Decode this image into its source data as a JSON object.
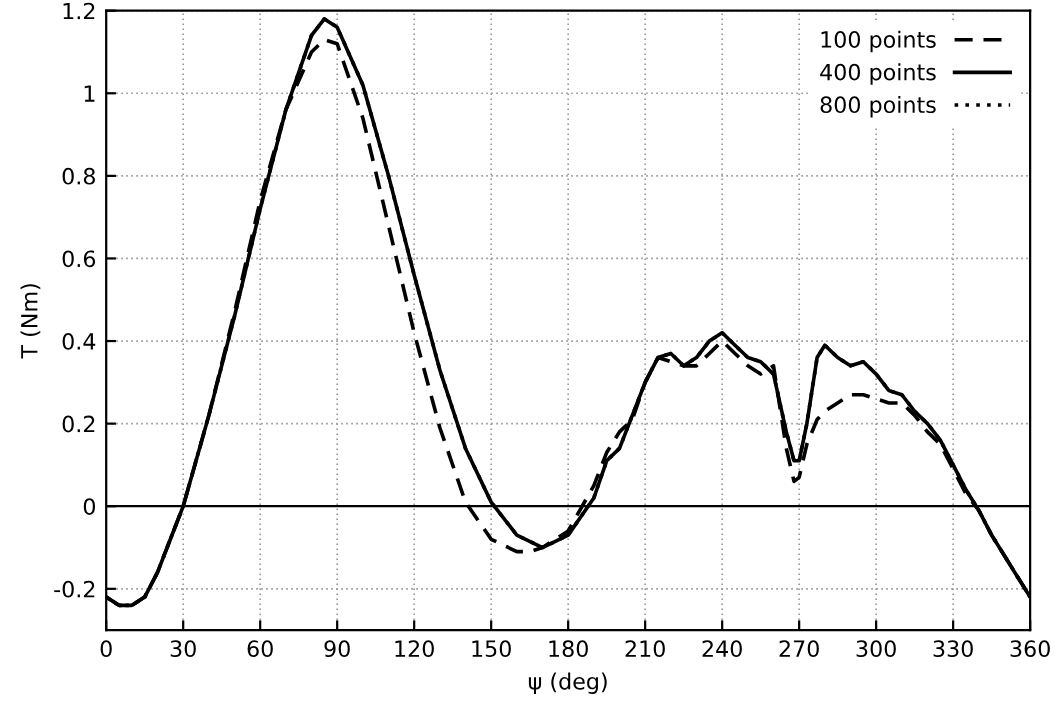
{
  "chart_data": {
    "type": "line",
    "xlabel": "ψ (deg)",
    "ylabel": "T (Nm)",
    "xlim": [
      0,
      360
    ],
    "ylim": [
      -0.3,
      1.2
    ],
    "xticks": [
      {
        "value": 0,
        "label": "0"
      },
      30,
      60,
      90,
      120,
      150,
      180,
      210,
      240,
      270,
      300,
      330,
      360
    ],
    "yticks": [
      -0.2,
      {
        "value": 0,
        "label": "0"
      },
      0.2,
      0.4,
      0.6,
      0.8,
      {
        "value": 1,
        "label": "1"
      },
      1.2
    ],
    "grid": true,
    "legend": "top right",
    "ref_lines": [
      {
        "axis": "y",
        "value": 0,
        "color": "#000000",
        "line_style": "solid"
      }
    ],
    "series": [
      {
        "name": "100 points",
        "color": "#000000",
        "line_style": "dashed",
        "x": [
          0,
          5,
          10,
          15,
          20,
          25,
          30,
          40,
          50,
          60,
          70,
          80,
          85,
          90,
          100,
          110,
          120,
          130,
          140,
          150,
          160,
          165,
          170,
          180,
          190,
          195,
          200,
          205,
          210,
          215,
          220,
          225,
          230,
          235,
          240,
          245,
          250,
          255,
          260,
          265,
          268,
          270,
          273,
          277,
          280,
          285,
          290,
          295,
          300,
          305,
          310,
          315,
          320,
          325,
          330,
          335,
          340,
          345,
          350,
          355,
          360
        ],
        "values": [
          -0.22,
          -0.24,
          -0.24,
          -0.22,
          -0.16,
          -0.08,
          0.0,
          0.22,
          0.47,
          0.74,
          0.96,
          1.1,
          1.13,
          1.12,
          0.94,
          0.68,
          0.42,
          0.19,
          0.01,
          -0.08,
          -0.11,
          -0.11,
          -0.1,
          -0.06,
          0.05,
          0.13,
          0.18,
          0.21,
          0.3,
          0.36,
          0.35,
          0.34,
          0.34,
          0.37,
          0.4,
          0.37,
          0.34,
          0.32,
          0.34,
          0.14,
          0.06,
          0.07,
          0.15,
          0.21,
          0.23,
          0.25,
          0.27,
          0.27,
          0.26,
          0.25,
          0.25,
          0.22,
          0.18,
          0.15,
          0.09,
          0.03,
          -0.01,
          -0.07,
          -0.12,
          -0.17,
          -0.22
        ]
      },
      {
        "name": "400 points",
        "color": "#000000",
        "line_style": "solid",
        "x": [
          0,
          5,
          10,
          15,
          20,
          25,
          30,
          40,
          50,
          60,
          70,
          80,
          85,
          90,
          100,
          110,
          120,
          130,
          140,
          150,
          160,
          170,
          180,
          190,
          195,
          200,
          205,
          210,
          215,
          220,
          225,
          230,
          235,
          240,
          245,
          250,
          255,
          260,
          265,
          268,
          270,
          273,
          277,
          280,
          285,
          290,
          295,
          300,
          305,
          310,
          315,
          320,
          325,
          330,
          335,
          340,
          345,
          350,
          355,
          360
        ],
        "values": [
          -0.22,
          -0.24,
          -0.24,
          -0.22,
          -0.16,
          -0.08,
          0.0,
          0.22,
          0.46,
          0.72,
          0.96,
          1.14,
          1.18,
          1.16,
          1.02,
          0.8,
          0.56,
          0.33,
          0.14,
          0.01,
          -0.07,
          -0.1,
          -0.07,
          0.02,
          0.11,
          0.14,
          0.22,
          0.3,
          0.36,
          0.37,
          0.34,
          0.36,
          0.4,
          0.42,
          0.39,
          0.36,
          0.35,
          0.32,
          0.18,
          0.11,
          0.11,
          0.2,
          0.36,
          0.39,
          0.36,
          0.34,
          0.35,
          0.32,
          0.28,
          0.27,
          0.23,
          0.2,
          0.16,
          0.1,
          0.04,
          -0.01,
          -0.07,
          -0.12,
          -0.17,
          -0.22
        ]
      },
      {
        "name": "800 points",
        "color": "#000000",
        "line_style": "dotted",
        "x": [
          0,
          5,
          10,
          15,
          20,
          25,
          30,
          40,
          50,
          60,
          70,
          80,
          85,
          90,
          100,
          110,
          120,
          130,
          140,
          150,
          160,
          170,
          180,
          190,
          195,
          200,
          205,
          210,
          215,
          220,
          225,
          230,
          235,
          240,
          245,
          250,
          255,
          260,
          265,
          268,
          270,
          273,
          277,
          280,
          285,
          290,
          295,
          300,
          305,
          310,
          315,
          320,
          325,
          330,
          335,
          340,
          345,
          350,
          355,
          360
        ],
        "values": [
          -0.22,
          -0.24,
          -0.24,
          -0.22,
          -0.16,
          -0.08,
          0.0,
          0.22,
          0.46,
          0.72,
          0.96,
          1.14,
          1.18,
          1.16,
          1.02,
          0.8,
          0.56,
          0.33,
          0.14,
          0.01,
          -0.07,
          -0.1,
          -0.07,
          0.02,
          0.11,
          0.14,
          0.22,
          0.3,
          0.36,
          0.37,
          0.34,
          0.36,
          0.4,
          0.42,
          0.39,
          0.36,
          0.35,
          0.32,
          0.18,
          0.11,
          0.11,
          0.2,
          0.36,
          0.39,
          0.36,
          0.34,
          0.35,
          0.32,
          0.28,
          0.27,
          0.23,
          0.2,
          0.16,
          0.1,
          0.04,
          -0.01,
          -0.07,
          -0.12,
          -0.17,
          -0.22
        ]
      }
    ]
  }
}
